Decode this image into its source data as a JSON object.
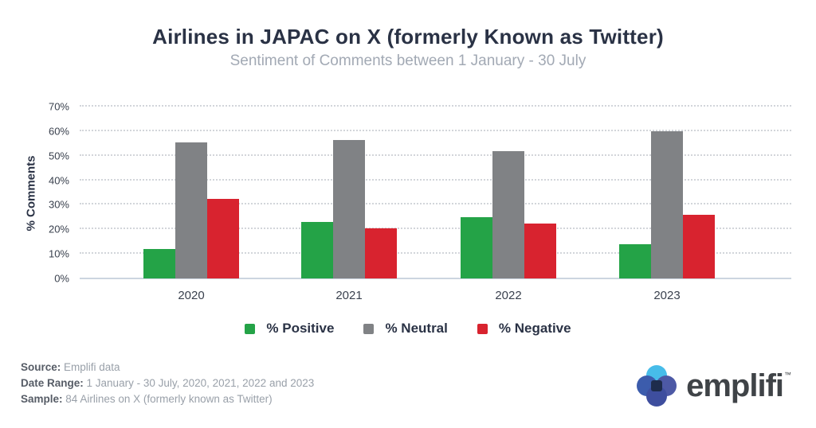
{
  "header": {
    "title": "Airlines in JAPAC on X (formerly Known as Twitter)",
    "subtitle": "Sentiment of Comments between 1 January - 30 July"
  },
  "chart_data": {
    "type": "bar",
    "title": "Airlines in JAPAC on X (formerly Known as Twitter)",
    "subtitle": "Sentiment of Comments between 1 January - 30 July",
    "categories": [
      "2020",
      "2021",
      "2022",
      "2023"
    ],
    "series": [
      {
        "name": "% Positive",
        "color": "#24a347",
        "values": [
          12,
          23,
          25,
          14
        ]
      },
      {
        "name": "% Neutral",
        "color": "#808285",
        "values": [
          55.5,
          56.5,
          52,
          60
        ]
      },
      {
        "name": "% Negative",
        "color": "#d8232f",
        "values": [
          32.5,
          20.5,
          22.5,
          26
        ]
      }
    ],
    "xlabel": "",
    "ylabel": "% Comments",
    "ylim": [
      0,
      70
    ],
    "yticks": [
      "0%",
      "10%",
      "20%",
      "30%",
      "40%",
      "50%",
      "60%",
      "70%"
    ],
    "grid": "horizontal dotted",
    "legend_position": "bottom"
  },
  "footer": {
    "source_label": "Source:",
    "source_value": "Emplifi data",
    "date_range_label": "Date Range:",
    "date_range_value": "1 January - 30 July, 2020, 2021, 2022 and 2023",
    "sample_label": "Sample:",
    "sample_value": "84 Airlines on X (formerly known as Twitter)"
  },
  "logo": {
    "text": "emplifi",
    "trademark": "™",
    "mark_colors": {
      "top": "#47bce9",
      "left": "#3c5cac",
      "right": "#4d59a5",
      "bottom": "#3e4e9e",
      "center": "#1e2c4c"
    }
  }
}
